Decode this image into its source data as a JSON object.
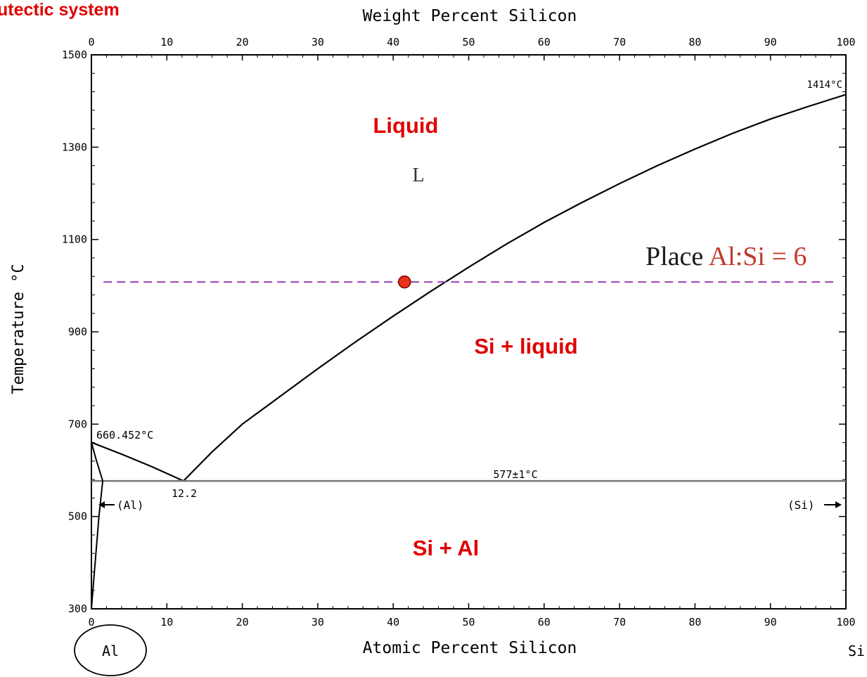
{
  "slide_title": "utectic system",
  "colors": {
    "annotation": "#e00000",
    "place_red": "#c0392b",
    "dashed_line": "#9b3fb5",
    "marker_fill": "#e8321b",
    "marker_stroke": "#8b0000",
    "axis": "#000000",
    "eutectic_line": "#777777"
  },
  "chart_data": {
    "type": "line",
    "title": "",
    "xlabel": "Atomic Percent Silicon",
    "x2label": "Weight Percent Silicon",
    "ylabel": "Temperature °C",
    "xlim": [
      0,
      100
    ],
    "ylim": [
      300,
      1500
    ],
    "x_ticks": [
      "0",
      "10",
      "20",
      "30",
      "40",
      "50",
      "60",
      "70",
      "80",
      "90",
      "100"
    ],
    "x2_ticks": [
      "0",
      "10",
      "20",
      "30",
      "40",
      "50",
      "60",
      "70",
      "80",
      "90",
      "100"
    ],
    "y_ticks": [
      "300",
      "500",
      "700",
      "900",
      "1100",
      "1300",
      "1500"
    ],
    "grid": false,
    "series": [
      {
        "points": [
          [
            0,
            660.452
          ],
          [
            4,
            635
          ],
          [
            8,
            608
          ],
          [
            12.2,
            577
          ]
        ]
      },
      {
        "points": [
          [
            12.2,
            577
          ],
          [
            16,
            640
          ],
          [
            20,
            700
          ],
          [
            25,
            760
          ],
          [
            30,
            820
          ],
          [
            35,
            878
          ],
          [
            40,
            934
          ],
          [
            45,
            988
          ],
          [
            50,
            1040
          ],
          [
            55,
            1090
          ],
          [
            60,
            1137
          ],
          [
            65,
            1180
          ],
          [
            70,
            1221
          ],
          [
            75,
            1260
          ],
          [
            80,
            1296
          ],
          [
            85,
            1330
          ],
          [
            90,
            1361
          ],
          [
            95,
            1388
          ],
          [
            100,
            1414
          ]
        ]
      },
      {
        "points": [
          [
            0,
            577
          ],
          [
            100,
            577
          ]
        ]
      },
      {
        "points": [
          [
            0,
            660.452
          ],
          [
            0.6,
            625
          ],
          [
            1.5,
            577
          ],
          [
            1.0,
            500
          ],
          [
            0.6,
            420
          ],
          [
            0.2,
            340
          ],
          [
            0,
            300
          ]
        ]
      },
      {
        "points": [
          [
            1.6,
            1008
          ],
          [
            98.5,
            1008
          ]
        ]
      },
      {
        "points": [
          [
            41.5,
            1008
          ]
        ]
      }
    ],
    "annotations": {
      "si_melting": "1414°C",
      "al_melting": "660.452°C",
      "eutectic_temp": "577±1°C",
      "eutectic_comp": "12.2",
      "al_phase": "(Al)",
      "si_phase": "(Si)",
      "liquid_symbol": "L",
      "left_end": "Al",
      "right_end": "Si"
    },
    "region_labels": {
      "liquid": "Liquid",
      "si_liquid": "Si + liquid",
      "si_al": "Si + Al"
    },
    "place_text": {
      "prefix": "Place ",
      "ratio": "Al:Si = 6"
    }
  }
}
